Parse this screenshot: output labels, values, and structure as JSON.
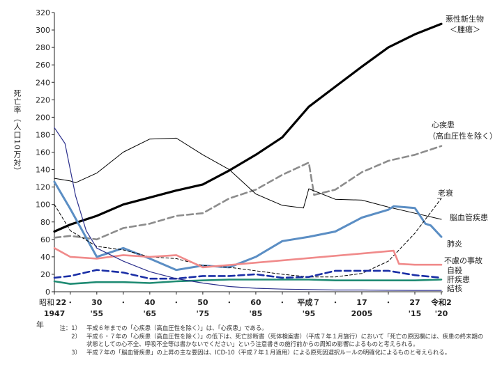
{
  "chart_data": {
    "type": "line",
    "ylabel": "死亡率（人口10万対）",
    "ylim": [
      0,
      320
    ],
    "yticks": [
      0,
      20,
      40,
      60,
      80,
      100,
      120,
      140,
      160,
      180,
      200,
      220,
      240,
      260,
      280,
      300,
      320
    ],
    "xlim": [
      1947,
      2020
    ],
    "xticks": [
      {
        "x": 1947,
        "line1": "昭和",
        "line2": "22",
        "line3": "1947"
      },
      {
        "x": 1950,
        "line1": "",
        "line2": "・",
        "line3": ""
      },
      {
        "x": 1955,
        "line1": "",
        "line2": "30",
        "line3": "'55"
      },
      {
        "x": 1960,
        "line1": "",
        "line2": "・",
        "line3": ""
      },
      {
        "x": 1965,
        "line1": "",
        "line2": "40",
        "line3": "'65"
      },
      {
        "x": 1970,
        "line1": "",
        "line2": "・",
        "line3": ""
      },
      {
        "x": 1975,
        "line1": "",
        "line2": "50",
        "line3": "'75"
      },
      {
        "x": 1980,
        "line1": "",
        "line2": "・",
        "line3": ""
      },
      {
        "x": 1985,
        "line1": "",
        "line2": "60",
        "line3": "'85"
      },
      {
        "x": 1990,
        "line1": "",
        "line2": "・",
        "line3": ""
      },
      {
        "x": 1995,
        "line1": "",
        "line2": "平成７",
        "line3": "'95"
      },
      {
        "x": 2000,
        "line1": "",
        "line2": "・",
        "line3": ""
      },
      {
        "x": 2005,
        "line1": "",
        "line2": "17",
        "line3": "2005"
      },
      {
        "x": 2010,
        "line1": "",
        "line2": "・",
        "line3": ""
      },
      {
        "x": 2015,
        "line1": "",
        "line2": "27",
        "line3": "'15"
      },
      {
        "x": 2020,
        "line1": "",
        "line2": "令和2",
        "line3": "'20"
      }
    ],
    "xunit": "年",
    "series": [
      {
        "name": "悪性新生物＜腫瘍＞",
        "color": "#000000",
        "style": "solid",
        "width": 3.2,
        "x": [
          1947,
          1950,
          1955,
          1960,
          1965,
          1970,
          1975,
          1980,
          1985,
          1990,
          1995,
          2000,
          2005,
          2010,
          2015,
          2020
        ],
        "y": [
          69,
          77,
          87,
          100,
          108,
          116,
          123,
          139,
          157,
          177,
          212,
          235,
          258,
          280,
          295,
          307
        ]
      },
      {
        "name": "心疾患（高血圧性を除く）",
        "color": "#8c8c8c",
        "style": "dashed",
        "width": 2.6,
        "x": [
          1947,
          1950,
          1955,
          1960,
          1965,
          1970,
          1975,
          1980,
          1985,
          1990,
          1995,
          1996,
          2000,
          2005,
          2010,
          2015,
          2020
        ],
        "y": [
          62,
          64,
          60,
          73,
          78,
          87,
          90,
          107,
          117,
          134,
          148,
          111,
          117,
          137,
          150,
          157,
          167
        ]
      },
      {
        "name": "脳血管疾患",
        "color": "#000000",
        "style": "solid",
        "width": 1,
        "x": [
          1947,
          1950,
          1951,
          1955,
          1960,
          1965,
          1970,
          1975,
          1980,
          1985,
          1990,
          1994,
          1995,
          2000,
          2005,
          2010,
          2015,
          2020
        ],
        "y": [
          130,
          127,
          125,
          136,
          160,
          175,
          176,
          157,
          140,
          112,
          99,
          96,
          118,
          106,
          105,
          97,
          90,
          83
        ]
      },
      {
        "name": "肺炎",
        "color": "#5b8ec4",
        "style": "solid",
        "width": 3,
        "x": [
          1947,
          1950,
          1955,
          1960,
          1965,
          1970,
          1975,
          1980,
          1985,
          1990,
          1995,
          2000,
          2005,
          2010,
          2011,
          2015,
          2017,
          2018,
          2020
        ],
        "y": [
          126,
          95,
          40,
          50,
          38,
          25,
          30,
          28,
          40,
          58,
          63,
          69,
          85,
          94,
          98,
          96,
          78,
          76,
          63
        ]
      },
      {
        "name": "老衰",
        "color": "#000000",
        "style": "dashed-thin",
        "width": 1,
        "x": [
          1947,
          1950,
          1955,
          1960,
          1965,
          1970,
          1975,
          1980,
          1985,
          1990,
          1995,
          2000,
          2005,
          2010,
          2015,
          2020
        ],
        "y": [
          100,
          70,
          52,
          48,
          40,
          38,
          30,
          28,
          24,
          20,
          17,
          17,
          21,
          35,
          67,
          107
        ]
      },
      {
        "name": "不慮の事故",
        "color": "#f08a8a",
        "style": "solid",
        "width": 2.6,
        "x": [
          1947,
          1950,
          1955,
          1960,
          1965,
          1970,
          1975,
          2011,
          2012,
          2015,
          2020
        ],
        "y": [
          50,
          40,
          38,
          42,
          40,
          42,
          28,
          47,
          32,
          31,
          31
        ]
      },
      {
        "name": "自殺",
        "color": "#1a2ea6",
        "style": "dashed",
        "width": 2.6,
        "x": [
          1947,
          1950,
          1955,
          1960,
          1965,
          1970,
          1975,
          1980,
          1985,
          1990,
          1995,
          2000,
          2005,
          2010,
          2015,
          2020
        ],
        "y": [
          16,
          18,
          25,
          22,
          15,
          15,
          18,
          18,
          20,
          16,
          17,
          24,
          24,
          24,
          19,
          16
        ]
      },
      {
        "name": "肝疾患",
        "color": "#1f8b73",
        "style": "solid",
        "width": 2.6,
        "x": [
          1947,
          1950,
          1955,
          1960,
          1965,
          1970,
          1975,
          1980,
          1985,
          1990,
          1995,
          2000,
          2005,
          2010,
          2015,
          2020
        ],
        "y": [
          12,
          9,
          11,
          11,
          10,
          12,
          13,
          14,
          14,
          14,
          14,
          13,
          13,
          13,
          13,
          14
        ]
      },
      {
        "name": "結核",
        "color": "#2b2f8c",
        "style": "solid",
        "width": 1.2,
        "x": [
          1947,
          1949,
          1951,
          1953,
          1955,
          1960,
          1965,
          1970,
          1975,
          1980,
          1985,
          1990,
          1995,
          2000,
          2005,
          2010,
          2015,
          2020
        ],
        "y": [
          188,
          170,
          110,
          70,
          50,
          35,
          23,
          15,
          10,
          6,
          4,
          3,
          2.5,
          2,
          2,
          1.7,
          1.5,
          1.5
        ]
      }
    ]
  },
  "series_labels": {
    "cancer_1": "悪性新生物",
    "cancer_2": "＜腫瘍＞",
    "heart_1": "心疾患",
    "heart_2": "（高血圧性を除く）",
    "senility": "老衰",
    "cerebro": "脳血管疾患",
    "pneumonia": "肺炎",
    "accident": "不慮の事故",
    "suicide": "自殺",
    "liver": "肝疾患",
    "tb": "結核"
  },
  "notes": [
    {
      "no": "注：1）",
      "text": "平成６年までの「心疾患（高血圧性を除く）」は、「心疾患」である。"
    },
    {
      "no": "2）",
      "text": "平成６・７年の「心疾患（高血圧性を除く）」の低下は、死亡診断書（死体検案書）（平成７年１月施行）において「死亡の原因欄には、疾患の終末期の状態としての心不全、呼吸不全等は書かないでください」という注意書きの施行前からの周知の影響によるものと考えられる。"
    },
    {
      "no": "3）",
      "text": "平成７年の「脳血管疾患」の上昇の主な要因は、ICD-10（平成７年１月適用）による原死因選択ルールの明確化によるものと考えられる。"
    }
  ]
}
